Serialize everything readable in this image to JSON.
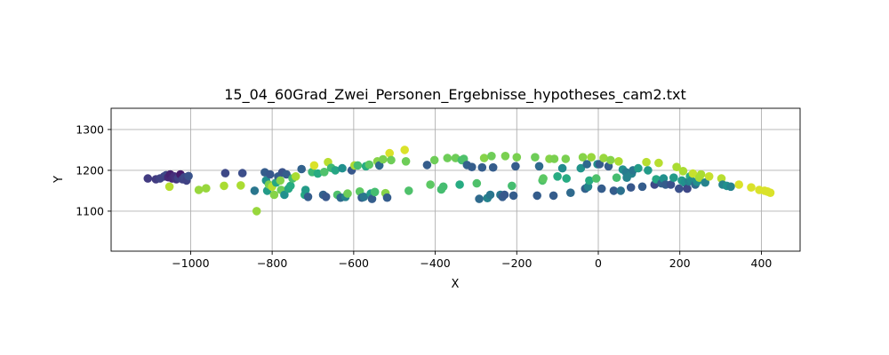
{
  "chart_data": {
    "type": "scatter",
    "title": "15_04_60Grad_Zwei_Personen_Ergebnisse_hypotheses_cam2.txt",
    "xlabel": "X",
    "ylabel": "Y",
    "xlim": [
      -1195,
      495
    ],
    "ylim": [
      1002,
      1352
    ],
    "xticks": [
      -1000,
      -800,
      -600,
      -400,
      -200,
      0,
      200,
      400
    ],
    "xtick_labels": [
      "−1000",
      "−800",
      "−600",
      "−400",
      "−200",
      "0",
      "200",
      "400"
    ],
    "yticks": [
      1100,
      1200,
      1300
    ],
    "ytick_labels": [
      "1100",
      "1200",
      "1300"
    ],
    "grid": true,
    "colormap": "viridis",
    "points": [
      [
        -1105,
        1180,
        0.18
      ],
      [
        -1085,
        1178,
        0.18
      ],
      [
        -1075,
        1180,
        0.2
      ],
      [
        -1065,
        1185,
        0.2
      ],
      [
        -1060,
        1188,
        0.22
      ],
      [
        -1055,
        1183,
        0.12
      ],
      [
        -1050,
        1190,
        0.1
      ],
      [
        -1045,
        1180,
        0.12
      ],
      [
        -1040,
        1185,
        0.14
      ],
      [
        -1035,
        1178,
        0.16
      ],
      [
        -1030,
        1182,
        0.2
      ],
      [
        -1025,
        1190,
        0.08
      ],
      [
        -1020,
        1178,
        0.2
      ],
      [
        -1015,
        1183,
        0.22
      ],
      [
        -1010,
        1175,
        0.2
      ],
      [
        -1005,
        1186,
        0.26
      ],
      [
        -1052,
        1160,
        0.9
      ],
      [
        -980,
        1152,
        0.85
      ],
      [
        -962,
        1156,
        0.85
      ],
      [
        -918,
        1162,
        0.88
      ],
      [
        -915,
        1193,
        0.22
      ],
      [
        -877,
        1163,
        0.88
      ],
      [
        -873,
        1193,
        0.24
      ],
      [
        -843,
        1150,
        0.4
      ],
      [
        -838,
        1100,
        0.85
      ],
      [
        -818,
        1195,
        0.3
      ],
      [
        -815,
        1175,
        0.5
      ],
      [
        -812,
        1150,
        0.55
      ],
      [
        -808,
        1165,
        0.8
      ],
      [
        -805,
        1190,
        0.28
      ],
      [
        -800,
        1160,
        0.9
      ],
      [
        -795,
        1140,
        0.82
      ],
      [
        -790,
        1170,
        0.6
      ],
      [
        -785,
        1185,
        0.3
      ],
      [
        -780,
        1175,
        0.82
      ],
      [
        -778,
        1152,
        0.78
      ],
      [
        -775,
        1195,
        0.26
      ],
      [
        -770,
        1140,
        0.5
      ],
      [
        -765,
        1190,
        0.3
      ],
      [
        -760,
        1155,
        0.6
      ],
      [
        -755,
        1162,
        0.62
      ],
      [
        -750,
        1180,
        0.7
      ],
      [
        -742,
        1185,
        0.88
      ],
      [
        -728,
        1203,
        0.32
      ],
      [
        -720,
        1140,
        0.62
      ],
      [
        -718,
        1152,
        0.55
      ],
      [
        -712,
        1135,
        0.3
      ],
      [
        -702,
        1196,
        0.68
      ],
      [
        -697,
        1212,
        0.95
      ],
      [
        -688,
        1192,
        0.62
      ],
      [
        -675,
        1140,
        0.32
      ],
      [
        -672,
        1196,
        0.72
      ],
      [
        -668,
        1135,
        0.28
      ],
      [
        -663,
        1220,
        0.9
      ],
      [
        -655,
        1206,
        0.68
      ],
      [
        -645,
        1200,
        0.6
      ],
      [
        -640,
        1140,
        0.72
      ],
      [
        -632,
        1133,
        0.35
      ],
      [
        -628,
        1205,
        0.5
      ],
      [
        -620,
        1135,
        0.45
      ],
      [
        -615,
        1143,
        0.78
      ],
      [
        -605,
        1200,
        0.28
      ],
      [
        -598,
        1212,
        0.88
      ],
      [
        -590,
        1212,
        0.7
      ],
      [
        -585,
        1148,
        0.75
      ],
      [
        -580,
        1133,
        0.3
      ],
      [
        -575,
        1135,
        0.4
      ],
      [
        -570,
        1210,
        0.62
      ],
      [
        -562,
        1214,
        0.75
      ],
      [
        -558,
        1143,
        0.55
      ],
      [
        -555,
        1130,
        0.3
      ],
      [
        -548,
        1147,
        0.7
      ],
      [
        -542,
        1222,
        0.82
      ],
      [
        -537,
        1212,
        0.35
      ],
      [
        -528,
        1227,
        0.8
      ],
      [
        -522,
        1144,
        0.82
      ],
      [
        -518,
        1133,
        0.3
      ],
      [
        -512,
        1242,
        0.95
      ],
      [
        -508,
        1225,
        0.78
      ],
      [
        -475,
        1250,
        0.95
      ],
      [
        -472,
        1222,
        0.78
      ],
      [
        -465,
        1150,
        0.72
      ],
      [
        -420,
        1213,
        0.3
      ],
      [
        -412,
        1165,
        0.75
      ],
      [
        -402,
        1225,
        0.78
      ],
      [
        -385,
        1153,
        0.7
      ],
      [
        -380,
        1160,
        0.7
      ],
      [
        -370,
        1230,
        0.78
      ],
      [
        -350,
        1230,
        0.78
      ],
      [
        -340,
        1165,
        0.62
      ],
      [
        -335,
        1225,
        0.7
      ],
      [
        -330,
        1228,
        0.72
      ],
      [
        -322,
        1213,
        0.32
      ],
      [
        -310,
        1208,
        0.3
      ],
      [
        -298,
        1168,
        0.72
      ],
      [
        -292,
        1130,
        0.35
      ],
      [
        -285,
        1207,
        0.3
      ],
      [
        -280,
        1230,
        0.82
      ],
      [
        -272,
        1132,
        0.45
      ],
      [
        -265,
        1140,
        0.4
      ],
      [
        -262,
        1235,
        0.78
      ],
      [
        -258,
        1207,
        0.3
      ],
      [
        -240,
        1140,
        0.4
      ],
      [
        -235,
        1135,
        0.3
      ],
      [
        -230,
        1140,
        0.28
      ],
      [
        -228,
        1235,
        0.8
      ],
      [
        -212,
        1162,
        0.7
      ],
      [
        -208,
        1138,
        0.3
      ],
      [
        -203,
        1210,
        0.3
      ],
      [
        -200,
        1232,
        0.8
      ],
      [
        -155,
        1232,
        0.78
      ],
      [
        -150,
        1138,
        0.3
      ],
      [
        -145,
        1210,
        0.35
      ],
      [
        -137,
        1175,
        0.72
      ],
      [
        -135,
        1180,
        0.75
      ],
      [
        -120,
        1228,
        0.82
      ],
      [
        -110,
        1138,
        0.3
      ],
      [
        -108,
        1228,
        0.8
      ],
      [
        -100,
        1185,
        0.62
      ],
      [
        -88,
        1205,
        0.48
      ],
      [
        -80,
        1228,
        0.8
      ],
      [
        -78,
        1180,
        0.62
      ],
      [
        -68,
        1145,
        0.35
      ],
      [
        -43,
        1205,
        0.52
      ],
      [
        -38,
        1232,
        0.82
      ],
      [
        -32,
        1155,
        0.32
      ],
      [
        -28,
        1215,
        0.35
      ],
      [
        -25,
        1160,
        0.45
      ],
      [
        -22,
        1175,
        0.62
      ],
      [
        -17,
        1232,
        0.85
      ],
      [
        -5,
        1180,
        0.72
      ],
      [
        -2,
        1215,
        0.5
      ],
      [
        3,
        1215,
        0.3
      ],
      [
        8,
        1155,
        0.3
      ],
      [
        13,
        1230,
        0.85
      ],
      [
        25,
        1210,
        0.3
      ],
      [
        30,
        1225,
        0.82
      ],
      [
        38,
        1150,
        0.3
      ],
      [
        45,
        1182,
        0.7
      ],
      [
        50,
        1222,
        0.88
      ],
      [
        55,
        1150,
        0.38
      ],
      [
        60,
        1202,
        0.5
      ],
      [
        68,
        1195,
        0.42
      ],
      [
        70,
        1182,
        0.45
      ],
      [
        80,
        1158,
        0.28
      ],
      [
        82,
        1192,
        0.45
      ],
      [
        85,
        1200,
        0.4
      ],
      [
        98,
        1205,
        0.55
      ],
      [
        108,
        1160,
        0.3
      ],
      [
        118,
        1220,
        0.9
      ],
      [
        122,
        1200,
        0.55
      ],
      [
        138,
        1165,
        0.22
      ],
      [
        142,
        1178,
        0.6
      ],
      [
        148,
        1218,
        0.9
      ],
      [
        155,
        1168,
        0.32
      ],
      [
        160,
        1180,
        0.5
      ],
      [
        165,
        1165,
        0.3
      ],
      [
        178,
        1165,
        0.25
      ],
      [
        185,
        1182,
        0.55
      ],
      [
        192,
        1208,
        0.88
      ],
      [
        198,
        1155,
        0.25
      ],
      [
        205,
        1175,
        0.55
      ],
      [
        208,
        1198,
        0.88
      ],
      [
        212,
        1170,
        0.5
      ],
      [
        218,
        1155,
        0.22
      ],
      [
        222,
        1173,
        0.45
      ],
      [
        225,
        1185,
        0.62
      ],
      [
        228,
        1175,
        0.48
      ],
      [
        232,
        1192,
        0.92
      ],
      [
        238,
        1165,
        0.35
      ],
      [
        242,
        1172,
        0.5
      ],
      [
        248,
        1182,
        0.88
      ],
      [
        252,
        1190,
        0.88
      ],
      [
        262,
        1170,
        0.45
      ],
      [
        272,
        1185,
        0.92
      ],
      [
        302,
        1180,
        0.9
      ],
      [
        305,
        1165,
        0.45
      ],
      [
        315,
        1162,
        0.5
      ],
      [
        325,
        1160,
        0.45
      ],
      [
        345,
        1165,
        0.95
      ],
      [
        375,
        1158,
        0.95
      ],
      [
        395,
        1152,
        0.95
      ],
      [
        408,
        1150,
        0.95
      ],
      [
        415,
        1148,
        0.95
      ],
      [
        422,
        1145,
        0.95
      ]
    ]
  }
}
